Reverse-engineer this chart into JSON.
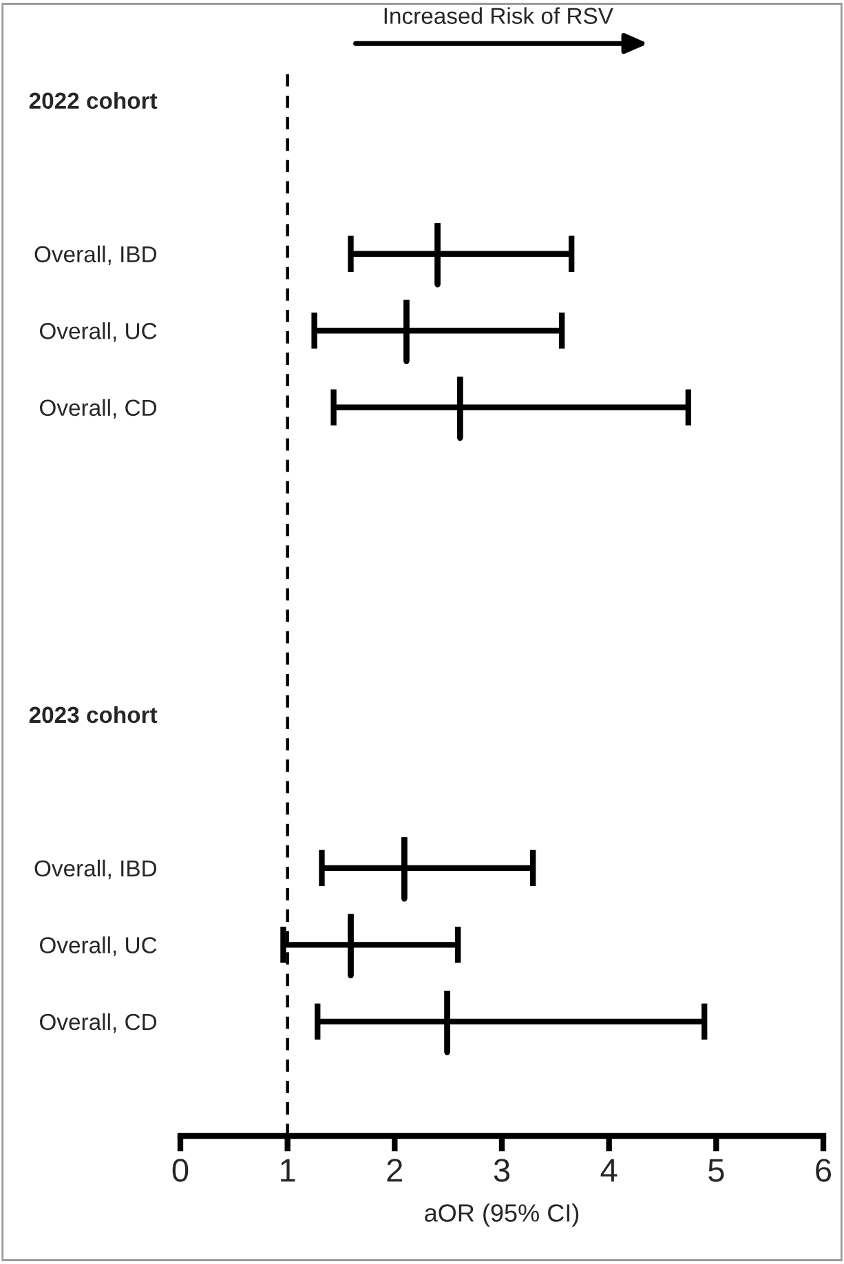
{
  "chart_data": {
    "type": "box",
    "orientation": "horizontal",
    "categories": [
      "2022 cohort",
      null,
      "Overall, IBD",
      "Overall, UC",
      "Overall, CD",
      null,
      null,
      null,
      "2023 cohort",
      null,
      "Overall, IBD",
      "Overall, UC",
      "Overall, CD"
    ],
    "boxes": [
      null,
      null,
      {
        "low": 1.59,
        "q1": 2.4,
        "median": 2.4,
        "q3": 2.4,
        "high": 3.65
      },
      {
        "low": 1.25,
        "q1": 2.11,
        "median": 2.11,
        "q3": 2.11,
        "high": 3.56
      },
      {
        "low": 1.43,
        "q1": 2.61,
        "median": 2.61,
        "q3": 2.61,
        "high": 4.74
      },
      null,
      null,
      null,
      null,
      null,
      {
        "low": 1.32,
        "q1": 2.09,
        "median": 2.09,
        "q3": 2.09,
        "high": 3.29
      },
      {
        "low": 0.96,
        "q1": 1.59,
        "median": 1.59,
        "q3": 1.59,
        "high": 2.59
      },
      {
        "low": 1.28,
        "q1": 2.49,
        "median": 2.49,
        "q3": 2.49,
        "high": 4.89
      }
    ],
    "color": "#000000",
    "xlim": [
      0,
      6
    ],
    "xticks": [
      0,
      1,
      2,
      3,
      4,
      5,
      6
    ],
    "xlabel": "aOR (95% CI)",
    "ref_lines": [
      {
        "axis": "x",
        "value": 1,
        "line_style": "dashed",
        "color": "#000000"
      }
    ],
    "annotations": [
      "Increased Risk of RSV"
    ],
    "grid": false,
    "legend": false
  }
}
